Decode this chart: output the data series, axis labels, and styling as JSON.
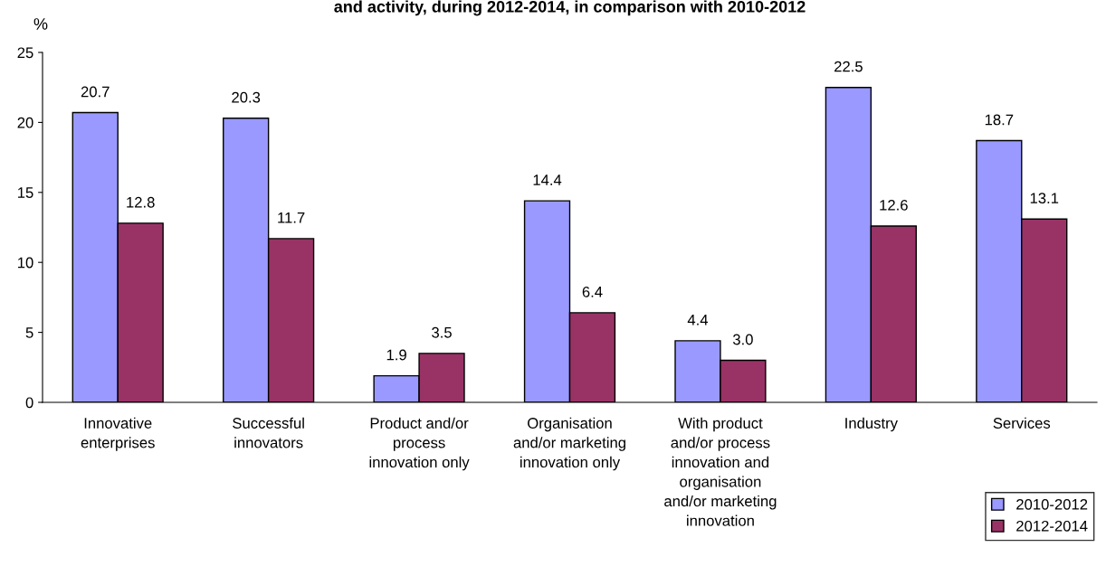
{
  "chart_data": {
    "type": "bar",
    "title": "and activity, during 2012-2014, in comparison with 2010-2012",
    "ylabel": "%",
    "categories": [
      "Innovative\nenterprises",
      "Successful\ninnovators",
      "Product and/or\nprocess\ninnovation only",
      "Organisation\nand/or marketing\ninnovation only",
      "With product\nand/or process\ninnovation and\norganisation\nand/or marketing\ninnovation",
      "Industry",
      "Services"
    ],
    "series": [
      {
        "name": "2010-2012",
        "color": "#9999ff",
        "values": [
          20.7,
          20.3,
          1.9,
          14.4,
          4.4,
          22.5,
          18.7
        ],
        "value_labels": [
          "20.7",
          "20.3",
          "1.9",
          "14.4",
          "4.4",
          "22.5",
          "18.7"
        ]
      },
      {
        "name": "2012-2014",
        "color": "#993366",
        "values": [
          12.8,
          11.7,
          3.5,
          6.4,
          3.0,
          12.6,
          13.1
        ],
        "value_labels": [
          "12.8",
          "11.7",
          "3.5",
          "6.4",
          "3.0",
          "12.6",
          "13.1"
        ]
      }
    ],
    "ylim": [
      0,
      25
    ],
    "yticks": [
      0,
      5,
      10,
      15,
      20,
      25
    ],
    "grid": false,
    "legend": "bottom right"
  }
}
